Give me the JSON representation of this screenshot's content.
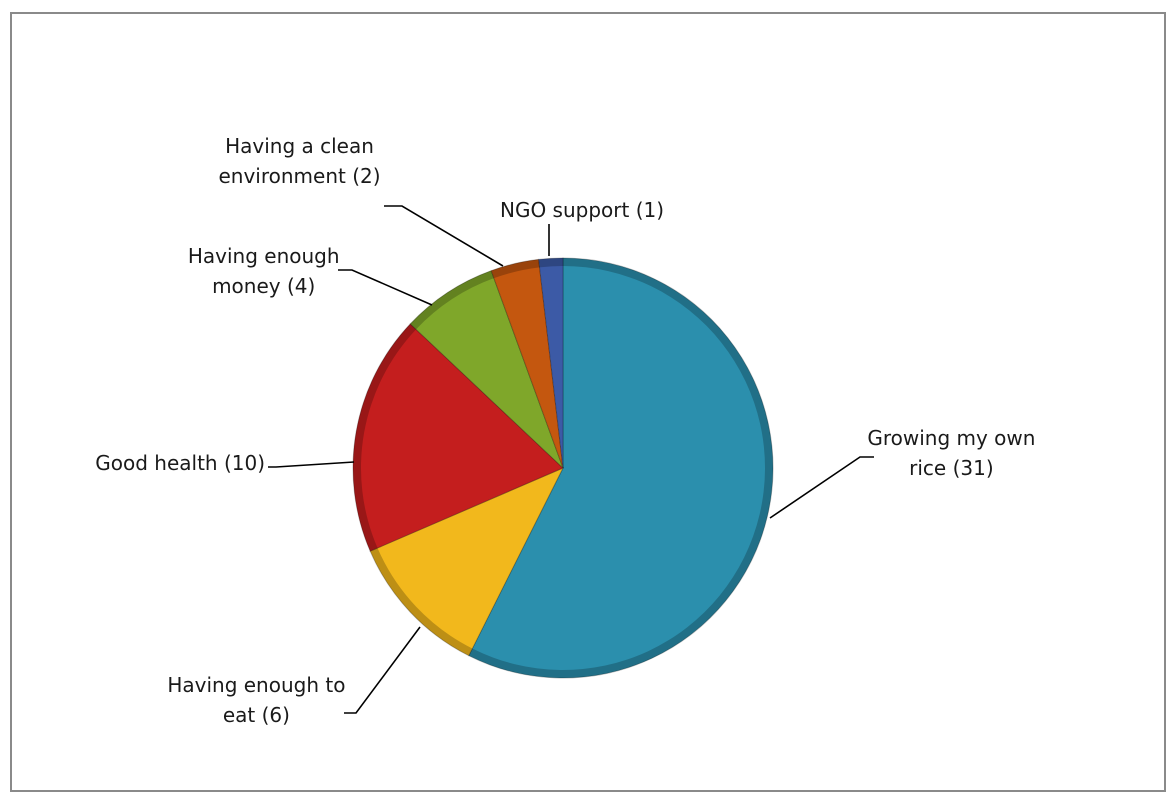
{
  "chart_data": {
    "type": "pie",
    "title": "",
    "slices": [
      {
        "label_lines": [
          "Growing my own",
          "rice (31)"
        ],
        "value": 31,
        "color": "#2b8fad"
      },
      {
        "label_lines": [
          "Having enough to",
          "eat (6)"
        ],
        "value": 6,
        "color": "#f2b81c"
      },
      {
        "label_lines": [
          "Good health (10)"
        ],
        "value": 10,
        "color": "#c41e1e"
      },
      {
        "label_lines": [
          "Having enough",
          "money (4)"
        ],
        "value": 4,
        "color": "#7fa72a"
      },
      {
        "label_lines": [
          "Having a clean",
          "environment (2)"
        ],
        "value": 2,
        "color": "#c4570f"
      },
      {
        "label_lines": [
          "NGO support (1)"
        ],
        "value": 1,
        "color": "#3c5aa6"
      }
    ],
    "start_angle_deg": 0,
    "direction": "clockwise",
    "legend": "none",
    "style": "3d-shaded"
  }
}
